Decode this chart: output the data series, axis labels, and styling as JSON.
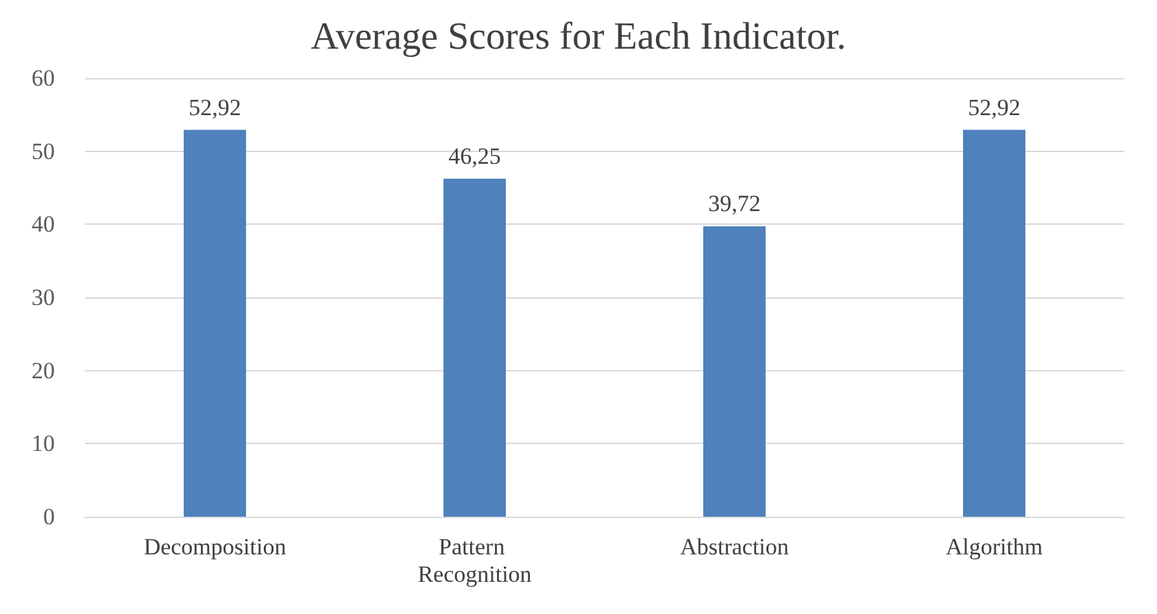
{
  "chart_data": {
    "type": "bar",
    "title": "Average Scores for Each Indicator.",
    "categories": [
      "Decomposition",
      "Pattern Recognition",
      "Abstraction",
      "Algorithm"
    ],
    "values": [
      52.92,
      46.25,
      39.72,
      52.92
    ],
    "value_labels": [
      "52,92",
      "46,25",
      "39,72",
      "52,92"
    ],
    "color": "#4f81bd",
    "ylim": [
      0,
      60
    ],
    "yticks": [
      0,
      10,
      20,
      30,
      40,
      50,
      60
    ],
    "grid": "y"
  }
}
